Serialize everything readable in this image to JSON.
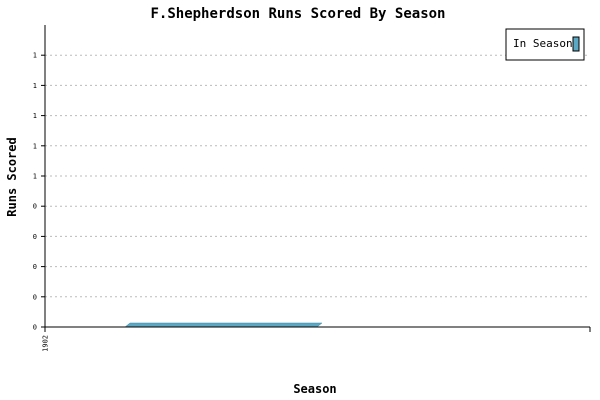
{
  "chart_data": {
    "type": "bar",
    "title": "F.Shepherdson Runs Scored By Season",
    "xlabel": "Season",
    "ylabel": "Runs Scored",
    "categories": [
      "1902"
    ],
    "series": [
      {
        "name": "In Season",
        "values": [
          0
        ],
        "color": "#5ba8c4"
      }
    ],
    "y_tick_labels": [
      "0",
      "0",
      "0",
      "0",
      "0",
      "1",
      "1",
      "1",
      "1",
      "1"
    ],
    "ylim": [
      0,
      1
    ],
    "grid": true,
    "legend_position": "top-right"
  }
}
